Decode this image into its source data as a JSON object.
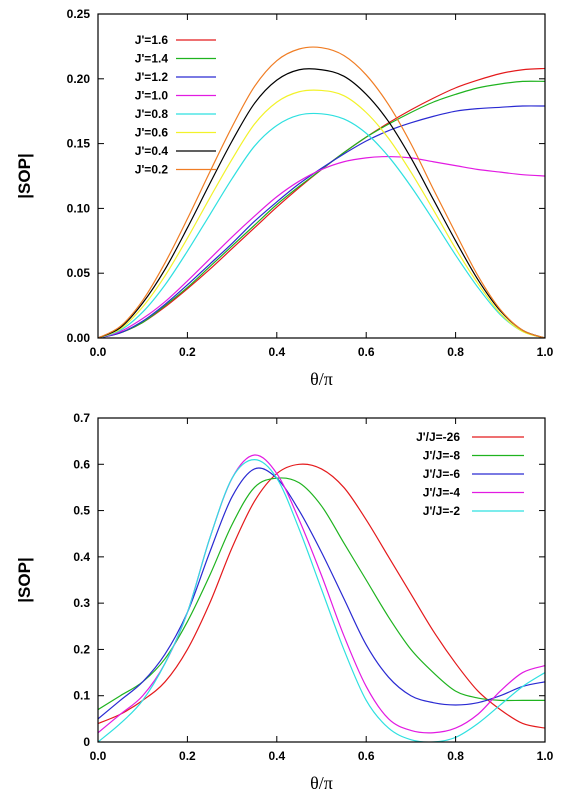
{
  "chart_data": [
    {
      "type": "line",
      "xlabel": "θ/π",
      "ylabel": "|SOP|",
      "xlim": [
        0,
        1
      ],
      "ylim": [
        0,
        0.25
      ],
      "xticks": [
        "0.0",
        "0.2",
        "0.4",
        "0.6",
        "0.8",
        "1.0"
      ],
      "yticks": [
        "0.00",
        "0.05",
        "0.10",
        "0.15",
        "0.20",
        "0.25"
      ],
      "grid": false,
      "legend_position": "top-left",
      "x": [
        0,
        0.05,
        0.1,
        0.15,
        0.2,
        0.25,
        0.3,
        0.35,
        0.4,
        0.45,
        0.5,
        0.55,
        0.6,
        0.65,
        0.7,
        0.75,
        0.8,
        0.85,
        0.9,
        0.95,
        1.0
      ],
      "series": [
        {
          "name": "J'=1.6",
          "color": "#e41a1c",
          "values": [
            0,
            0.004,
            0.012,
            0.024,
            0.038,
            0.053,
            0.069,
            0.085,
            0.101,
            0.116,
            0.13,
            0.143,
            0.155,
            0.166,
            0.176,
            0.185,
            0.193,
            0.199,
            0.204,
            0.207,
            0.208
          ]
        },
        {
          "name": "J'=1.4",
          "color": "#1fb31f",
          "values": [
            0,
            0.004,
            0.012,
            0.025,
            0.039,
            0.055,
            0.071,
            0.087,
            0.103,
            0.117,
            0.13,
            0.143,
            0.155,
            0.165,
            0.174,
            0.182,
            0.188,
            0.193,
            0.196,
            0.198,
            0.198
          ]
        },
        {
          "name": "J'=1.2",
          "color": "#2a2ad2",
          "values": [
            0,
            0.004,
            0.013,
            0.026,
            0.041,
            0.057,
            0.073,
            0.09,
            0.105,
            0.119,
            0.131,
            0.142,
            0.152,
            0.16,
            0.166,
            0.171,
            0.175,
            0.177,
            0.178,
            0.179,
            0.179
          ]
        },
        {
          "name": "J'=1.0",
          "color": "#e21be2",
          "values": [
            0,
            0.005,
            0.015,
            0.028,
            0.044,
            0.061,
            0.078,
            0.094,
            0.109,
            0.121,
            0.13,
            0.136,
            0.139,
            0.14,
            0.139,
            0.136,
            0.133,
            0.13,
            0.128,
            0.126,
            0.125
          ]
        },
        {
          "name": "J'=0.8",
          "color": "#2fe0e0",
          "values": [
            0,
            0.006,
            0.02,
            0.041,
            0.067,
            0.095,
            0.123,
            0.148,
            0.164,
            0.172,
            0.173,
            0.169,
            0.158,
            0.14,
            0.117,
            0.091,
            0.064,
            0.039,
            0.018,
            0.005,
            0
          ]
        },
        {
          "name": "J'=0.6",
          "color": "#f2f22a",
          "values": [
            0,
            0.007,
            0.024,
            0.048,
            0.077,
            0.108,
            0.138,
            0.165,
            0.182,
            0.19,
            0.191,
            0.187,
            0.174,
            0.154,
            0.128,
            0.099,
            0.069,
            0.042,
            0.019,
            0.005,
            0
          ]
        },
        {
          "name": "J'=0.4",
          "color": "#000000",
          "values": [
            0,
            0.008,
            0.027,
            0.053,
            0.085,
            0.119,
            0.152,
            0.181,
            0.199,
            0.207,
            0.207,
            0.202,
            0.188,
            0.167,
            0.139,
            0.107,
            0.075,
            0.045,
            0.021,
            0.006,
            0
          ]
        },
        {
          "name": "J'=0.2",
          "color": "#f07d24",
          "values": [
            0,
            0.009,
            0.029,
            0.058,
            0.092,
            0.128,
            0.163,
            0.194,
            0.214,
            0.223,
            0.224,
            0.218,
            0.203,
            0.18,
            0.15,
            0.115,
            0.081,
            0.048,
            0.022,
            0.006,
            0
          ]
        }
      ]
    },
    {
      "type": "line",
      "xlabel": "θ/π",
      "ylabel": "|SOP|",
      "xlim": [
        0,
        1
      ],
      "ylim": [
        0,
        0.7
      ],
      "xticks": [
        "0.0",
        "0.2",
        "0.4",
        "0.6",
        "0.8",
        "1.0"
      ],
      "yticks": [
        "0",
        "0.1",
        "0.2",
        "0.3",
        "0.4",
        "0.5",
        "0.6",
        "0.7"
      ],
      "grid": false,
      "legend_position": "top-right",
      "x": [
        0,
        0.05,
        0.1,
        0.15,
        0.2,
        0.25,
        0.3,
        0.35,
        0.4,
        0.45,
        0.5,
        0.55,
        0.6,
        0.65,
        0.7,
        0.75,
        0.8,
        0.85,
        0.9,
        0.95,
        1.0
      ],
      "series": [
        {
          "name": "J'/J=-26",
          "color": "#e41a1c",
          "values": [
            0.04,
            0.06,
            0.09,
            0.13,
            0.2,
            0.3,
            0.42,
            0.52,
            0.58,
            0.6,
            0.59,
            0.55,
            0.48,
            0.4,
            0.32,
            0.24,
            0.17,
            0.11,
            0.07,
            0.04,
            0.03
          ]
        },
        {
          "name": "J'/J=-8",
          "color": "#1fb31f",
          "values": [
            0.07,
            0.1,
            0.13,
            0.18,
            0.26,
            0.36,
            0.47,
            0.55,
            0.57,
            0.56,
            0.51,
            0.43,
            0.35,
            0.27,
            0.2,
            0.15,
            0.11,
            0.095,
            0.09,
            0.09,
            0.09
          ]
        },
        {
          "name": "J'/J=-6",
          "color": "#2a2ad2",
          "values": [
            0.05,
            0.09,
            0.13,
            0.19,
            0.28,
            0.41,
            0.53,
            0.59,
            0.57,
            0.5,
            0.41,
            0.31,
            0.21,
            0.14,
            0.1,
            0.085,
            0.08,
            0.085,
            0.1,
            0.12,
            0.13
          ]
        },
        {
          "name": "J'/J=-4",
          "color": "#e21be2",
          "values": [
            0.02,
            0.06,
            0.1,
            0.17,
            0.28,
            0.44,
            0.57,
            0.62,
            0.58,
            0.48,
            0.36,
            0.23,
            0.12,
            0.05,
            0.025,
            0.02,
            0.03,
            0.06,
            0.11,
            0.15,
            0.165
          ]
        },
        {
          "name": "J'/J=-2",
          "color": "#2fe0e0",
          "values": [
            0,
            0.04,
            0.09,
            0.17,
            0.28,
            0.44,
            0.57,
            0.61,
            0.57,
            0.46,
            0.33,
            0.2,
            0.09,
            0.03,
            0.005,
            0,
            0.01,
            0.04,
            0.08,
            0.12,
            0.15
          ]
        }
      ]
    }
  ]
}
